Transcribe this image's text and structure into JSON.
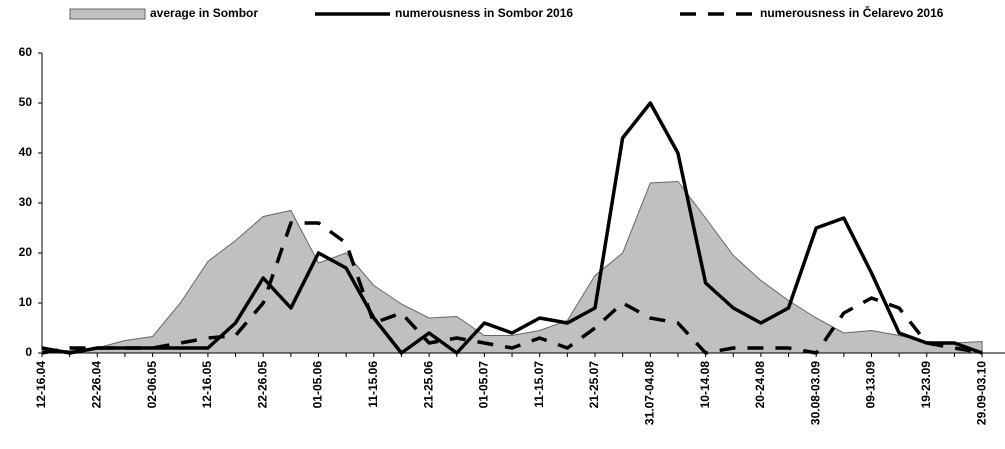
{
  "chart_data": {
    "type": "line",
    "categories": [
      "12-16.04",
      null,
      "22-26.04",
      null,
      "02-06.05",
      null,
      "12-16.05",
      null,
      "22-26.05",
      null,
      "01-05.06",
      null,
      "11-15.06",
      null,
      "21-25.06",
      null,
      "01-05.07",
      null,
      "11-15.07",
      null,
      "21-25.07",
      null,
      "31.07-04.08",
      null,
      "10-14.08",
      null,
      "20-24.08",
      null,
      "30.08-03.09",
      null,
      "09-13.09",
      null,
      "19-23.09",
      null,
      "29.09-03.10"
    ],
    "series": [
      {
        "name": "average in Sombor",
        "style": "area",
        "color": "#c0c0c0",
        "values": [
          0.5,
          0.5,
          1,
          2.5,
          3.3,
          10,
          18.3,
          22.5,
          27.3,
          28.5,
          18,
          20,
          13.5,
          9.8,
          7,
          7.3,
          3.5,
          3.5,
          4.5,
          6.5,
          15.5,
          20,
          34,
          34.3,
          27,
          19.5,
          14.5,
          10.5,
          7,
          4,
          4.5,
          3.5,
          2.3,
          2,
          2.3
        ]
      },
      {
        "name": "numerousness in Sombor 2016",
        "style": "solid",
        "color": "#000000",
        "values": [
          1,
          0,
          1,
          1,
          1,
          1,
          1,
          6,
          15,
          9,
          20,
          17,
          7,
          0,
          4,
          0,
          6,
          4,
          7,
          6,
          9,
          43,
          50,
          40,
          14,
          9,
          6,
          9,
          25,
          27,
          16,
          4,
          2,
          2,
          0
        ]
      },
      {
        "name": "numerousness in Čelarevo 2016",
        "style": "dashed",
        "color": "#000000",
        "values": [
          0,
          1,
          1,
          1,
          1,
          2,
          3,
          3.5,
          10,
          26,
          26,
          22,
          6,
          8,
          2,
          3,
          2,
          1,
          3,
          1,
          5,
          10,
          7,
          6,
          0,
          1,
          1,
          1,
          0,
          8,
          11,
          9,
          2,
          1,
          0
        ]
      }
    ],
    "ylim": [
      0,
      60
    ],
    "yticks": [
      0,
      10,
      20,
      30,
      40,
      50,
      60
    ],
    "legend": "top"
  }
}
